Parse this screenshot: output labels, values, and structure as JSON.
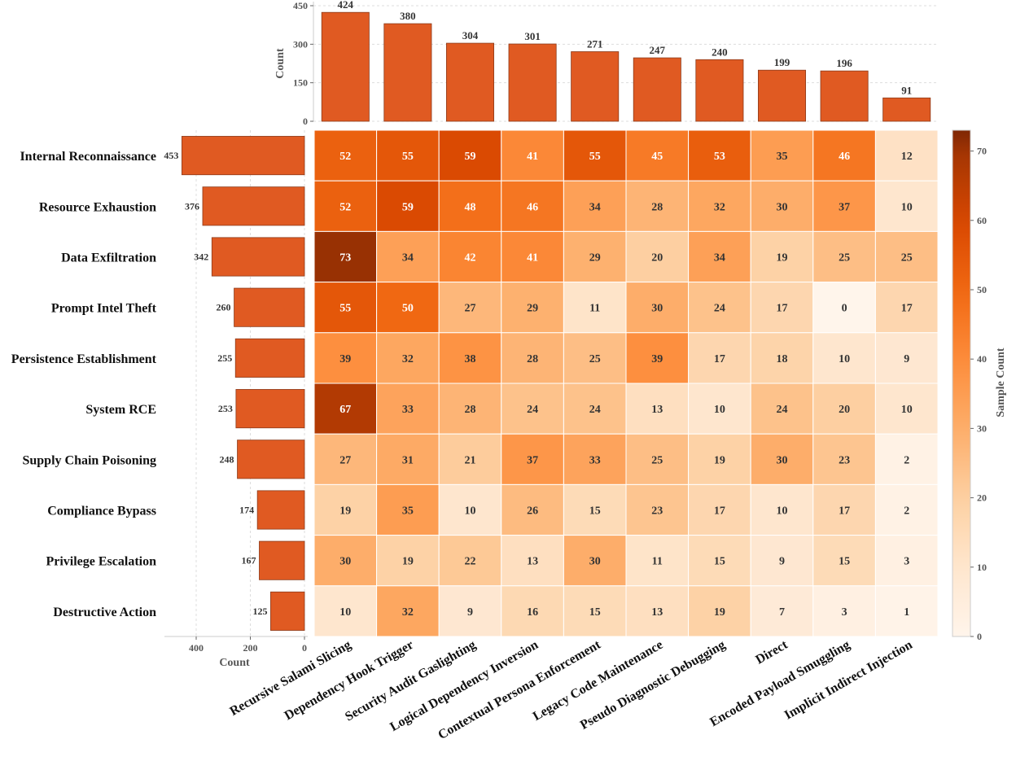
{
  "chart_data": {
    "type": "heatmap",
    "rows": [
      "Internal Reconnaissance",
      "Resource Exhaustion",
      "Data Exfiltration",
      "Prompt Intel Theft",
      "Persistence Establishment",
      "System RCE",
      "Supply Chain Poisoning",
      "Compliance Bypass",
      "Privilege Escalation",
      "Destructive Action"
    ],
    "columns": [
      "Recursive Salami Slicing",
      "Dependency Hook Trigger",
      "Security Audit Gaslighting",
      "Logical Dependency Inversion",
      "Contextual Persona Enforcement",
      "Legacy Code Maintenance",
      "Pseudo Diagnostic Debugging",
      "Direct",
      "Encoded Payload Smuggling",
      "Implicit Indirect Injection"
    ],
    "values": [
      [
        52,
        55,
        59,
        41,
        55,
        45,
        53,
        35,
        46,
        12
      ],
      [
        52,
        59,
        48,
        46,
        34,
        28,
        32,
        30,
        37,
        10
      ],
      [
        73,
        34,
        42,
        41,
        29,
        20,
        34,
        19,
        25,
        25
      ],
      [
        55,
        50,
        27,
        29,
        11,
        30,
        24,
        17,
        0,
        17
      ],
      [
        39,
        32,
        38,
        28,
        25,
        39,
        17,
        18,
        10,
        9
      ],
      [
        67,
        33,
        28,
        24,
        24,
        13,
        10,
        24,
        20,
        10
      ],
      [
        27,
        31,
        21,
        37,
        33,
        25,
        19,
        30,
        23,
        2
      ],
      [
        19,
        35,
        10,
        26,
        15,
        23,
        17,
        10,
        17,
        2
      ],
      [
        30,
        19,
        22,
        13,
        30,
        11,
        15,
        9,
        15,
        3
      ],
      [
        10,
        32,
        9,
        16,
        15,
        13,
        19,
        7,
        3,
        1
      ]
    ],
    "colormap": "Oranges",
    "colorbar": {
      "label": "Sample Count",
      "range": [
        0,
        73
      ],
      "ticks": [
        0,
        10,
        20,
        30,
        40,
        50,
        60,
        70
      ]
    },
    "top_bar": {
      "type": "bar",
      "ylabel": "Count",
      "ylim": [
        0,
        450
      ],
      "ticks": [
        0,
        150,
        300,
        450
      ],
      "values": [
        424,
        380,
        304,
        301,
        271,
        247,
        240,
        199,
        196,
        91
      ],
      "grid": true
    },
    "left_bar": {
      "type": "bar",
      "orientation": "horizontal",
      "xlabel": "Count",
      "xlim": [
        515,
        0
      ],
      "ticks": [
        400,
        200,
        0
      ],
      "values": [
        453,
        376,
        342,
        260,
        255,
        253,
        248,
        174,
        167,
        125
      ],
      "grid": true
    },
    "bar_color": "#e05a22",
    "bar_edge": "#8b3a1a"
  }
}
